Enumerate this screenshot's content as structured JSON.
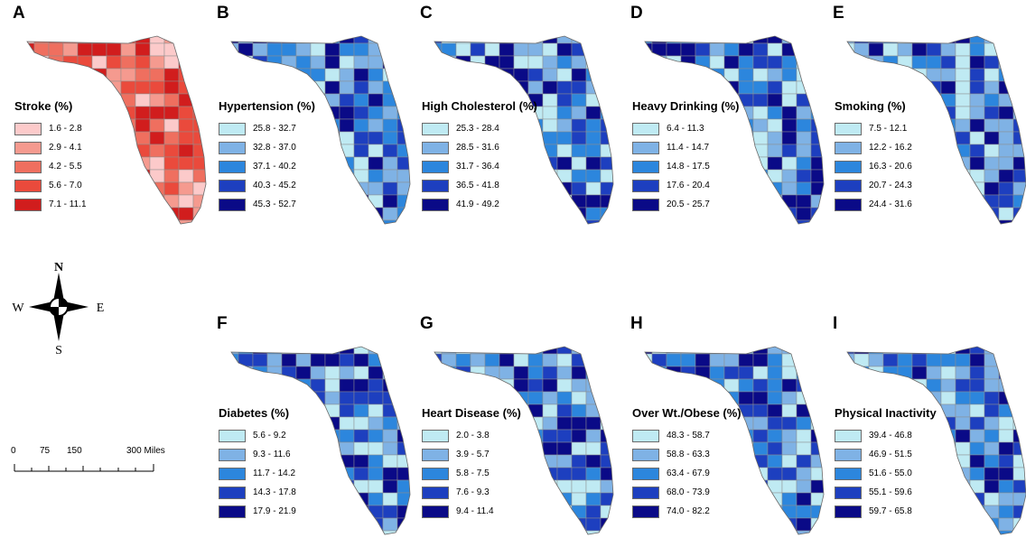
{
  "compass": {
    "n": "N",
    "s": "S",
    "e": "E",
    "w": "W"
  },
  "scale": {
    "labels": [
      "0",
      "75",
      "150",
      "300 Miles"
    ]
  },
  "panels": [
    {
      "letter": "A",
      "title": "Stroke (%)",
      "ranges": [
        "1.6 - 2.8",
        "2.9 - 4.1",
        "4.2 - 5.5",
        "5.6 - 7.0",
        "7.1 - 11.1"
      ],
      "colors": [
        "#fccaca",
        "#f59a8f",
        "#ef6f5f",
        "#ea4a3c",
        "#d11d1d"
      ]
    },
    {
      "letter": "B",
      "title": "Hypertension (%)",
      "ranges": [
        "25.8 - 32.7",
        "32.8 - 37.0",
        "37.1 - 40.2",
        "40.3 - 45.2",
        "45.3 - 52.7"
      ],
      "colors": [
        "#bfeaf3",
        "#7fb2e5",
        "#2c86dd",
        "#1d3fbf",
        "#0a0a87"
      ]
    },
    {
      "letter": "C",
      "title": "High Cholesterol (%)",
      "ranges": [
        "25.3 - 28.4",
        "28.5 - 31.6",
        "31.7 - 36.4",
        "36.5 - 41.8",
        "41.9 - 49.2"
      ],
      "colors": [
        "#bfeaf3",
        "#7fb2e5",
        "#2c86dd",
        "#1d3fbf",
        "#0a0a87"
      ]
    },
    {
      "letter": "D",
      "title": "Heavy Drinking (%)",
      "ranges": [
        "6.4 - 11.3",
        "11.4 - 14.7",
        "14.8 - 17.5",
        "17.6 - 20.4",
        "20.5 - 25.7"
      ],
      "colors": [
        "#bfeaf3",
        "#7fb2e5",
        "#2c86dd",
        "#1d3fbf",
        "#0a0a87"
      ]
    },
    {
      "letter": "E",
      "title": "Smoking (%)",
      "ranges": [
        "7.5 - 12.1",
        "12.2 - 16.2",
        "16.3 - 20.6",
        "20.7 - 24.3",
        "24.4 - 31.6"
      ],
      "colors": [
        "#bfeaf3",
        "#7fb2e5",
        "#2c86dd",
        "#1d3fbf",
        "#0a0a87"
      ]
    },
    {
      "letter": "F",
      "title": "Diabetes (%)",
      "ranges": [
        "5.6 - 9.2",
        "9.3 - 11.6",
        "11.7 - 14.2",
        "14.3 - 17.8",
        "17.9 - 21.9"
      ],
      "colors": [
        "#bfeaf3",
        "#7fb2e5",
        "#2c86dd",
        "#1d3fbf",
        "#0a0a87"
      ]
    },
    {
      "letter": "G",
      "title": "Heart Disease (%)",
      "ranges": [
        "2.0 - 3.8",
        "3.9 - 5.7",
        "5.8 - 7.5",
        "7.6 - 9.3",
        "9.4 - 11.4"
      ],
      "colors": [
        "#bfeaf3",
        "#7fb2e5",
        "#2c86dd",
        "#1d3fbf",
        "#0a0a87"
      ]
    },
    {
      "letter": "H",
      "title": "Over Wt./Obese (%)",
      "ranges": [
        "48.3 - 58.7",
        "58.8 - 63.3",
        "63.4 - 67.9",
        "68.0 - 73.9",
        "74.0 - 82.2"
      ],
      "colors": [
        "#bfeaf3",
        "#7fb2e5",
        "#2c86dd",
        "#1d3fbf",
        "#0a0a87"
      ]
    },
    {
      "letter": "I",
      "title": "Physical Inactivity",
      "ranges": [
        "39.4 - 46.8",
        "46.9 - 51.5",
        "51.6 - 55.0",
        "55.1 - 59.6",
        "59.7 - 65.8"
      ],
      "colors": [
        "#bfeaf3",
        "#7fb2e5",
        "#2c86dd",
        "#1d3fbf",
        "#0a0a87"
      ]
    }
  ]
}
